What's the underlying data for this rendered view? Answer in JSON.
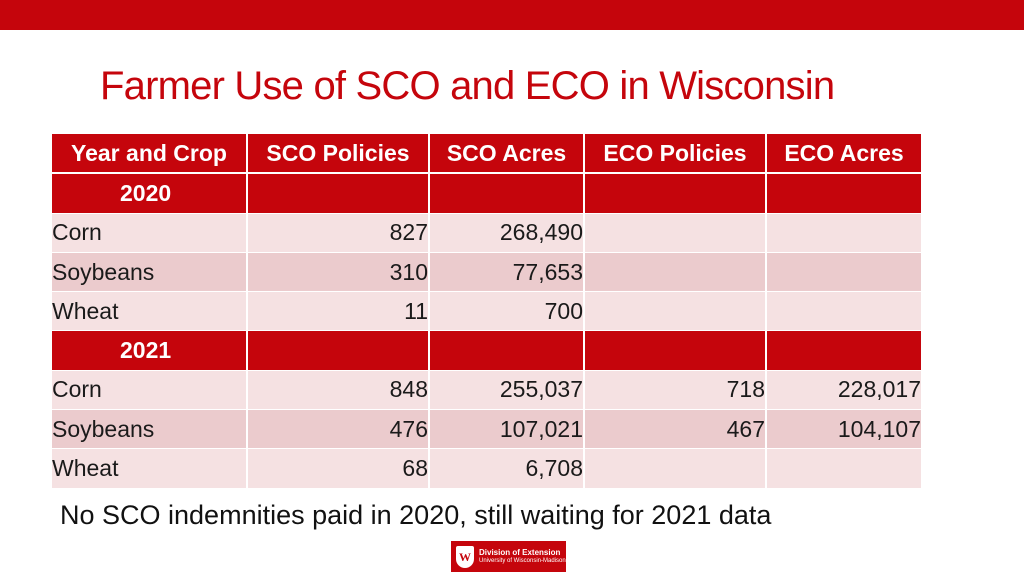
{
  "slide": {
    "title": "Farmer Use of SCO and ECO in Wisconsin",
    "footnote": "No SCO indemnities paid in 2020, still waiting for 2021 data",
    "logo": {
      "line1": "Division of Extension",
      "line2": "University of Wisconsin-Madison",
      "crest_letter": "W"
    },
    "colors": {
      "accent": "#c5050c",
      "row_light": "#f5e1e2",
      "row_dark": "#ebcbcd"
    }
  },
  "table": {
    "headers": [
      "Year and Crop",
      "SCO Policies",
      "SCO Acres",
      "ECO Policies",
      "ECO Acres"
    ],
    "groups": [
      {
        "year": "2020",
        "rows": [
          {
            "crop": "Corn",
            "sco_policies": "827",
            "sco_acres": "268,490",
            "eco_policies": "",
            "eco_acres": ""
          },
          {
            "crop": "Soybeans",
            "sco_policies": "310",
            "sco_acres": "77,653",
            "eco_policies": "",
            "eco_acres": ""
          },
          {
            "crop": "Wheat",
            "sco_policies": "11",
            "sco_acres": "700",
            "eco_policies": "",
            "eco_acres": ""
          }
        ]
      },
      {
        "year": "2021",
        "rows": [
          {
            "crop": "Corn",
            "sco_policies": "848",
            "sco_acres": "255,037",
            "eco_policies": "718",
            "eco_acres": "228,017"
          },
          {
            "crop": "Soybeans",
            "sco_policies": "476",
            "sco_acres": "107,021",
            "eco_policies": "467",
            "eco_acres": "104,107"
          },
          {
            "crop": "Wheat",
            "sco_policies": "68",
            "sco_acres": "6,708",
            "eco_policies": "",
            "eco_acres": ""
          }
        ]
      }
    ]
  }
}
